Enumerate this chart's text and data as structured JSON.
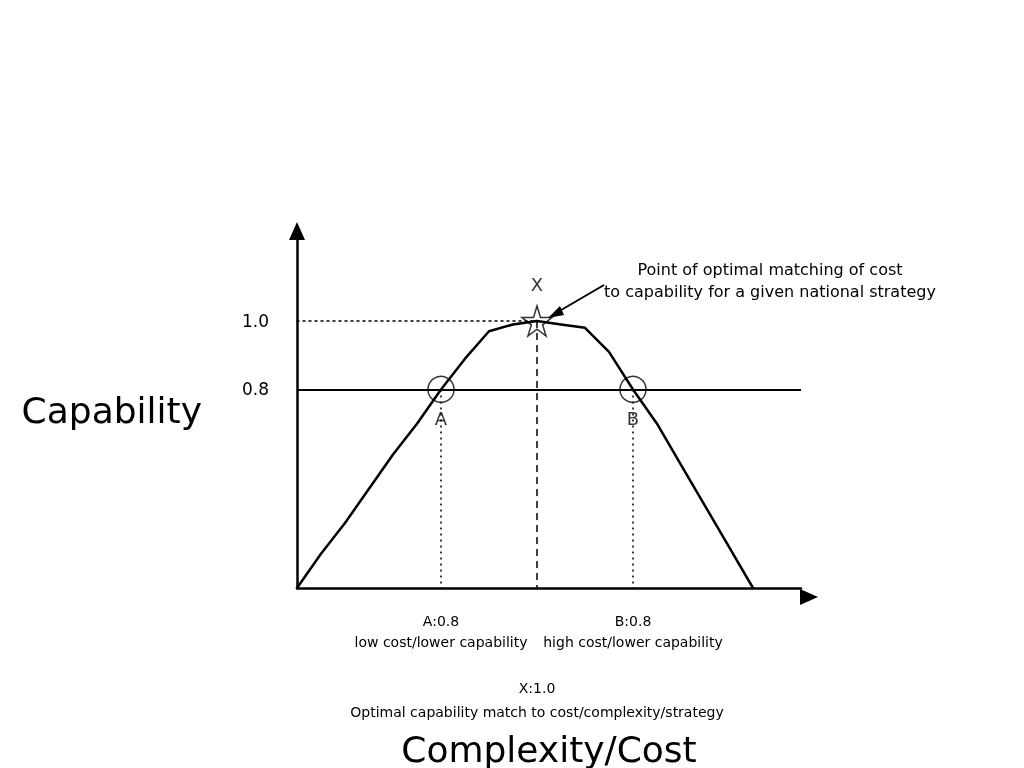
{
  "chart_data": {
    "type": "line",
    "xlabel": "Complexity/Cost",
    "ylabel": "Capability",
    "categories": [
      null,
      null,
      null,
      null,
      null,
      null,
      null,
      null,
      null,
      null,
      null,
      null,
      null,
      null,
      null,
      null,
      null,
      null,
      null,
      null,
      null,
      null
    ],
    "ylim": [
      0.22,
      1.26
    ],
    "yticks": [
      0.8,
      {
        "value": 1,
        "label": "1.0"
      }
    ],
    "series": [
      {
        "color": "#000000",
        "marker": "none",
        "values": [
          0.22,
          0.32,
          0.41,
          0.51,
          0.61,
          0.7,
          0.8,
          0.89,
          0.97,
          0.99,
          1.0,
          0.99,
          0.98,
          0.91,
          0.8,
          0.7,
          0.58,
          0.46,
          0.34,
          0.22,
          null,
          null
        ]
      },
      {
        "color": "#000000",
        "marker": "none",
        "line_style": "dotted",
        "values": [
          1.0,
          1.0,
          1.0,
          1.0,
          1.0,
          1.0,
          1.0,
          1.0,
          1.0,
          1.0,
          1.0,
          null,
          null,
          null,
          null,
          null,
          null,
          null,
          null,
          null,
          null,
          null
        ]
      },
      {
        "type": "scatter",
        "color": "#000000",
        "marker": "circle",
        "line_style": "dotted",
        "values": [
          null,
          null,
          null,
          null,
          null,
          null,
          0.8,
          null,
          null,
          null,
          null,
          null,
          null,
          null,
          0.8,
          null,
          null,
          null,
          null,
          null,
          null,
          null
        ],
        "value_labels": [
          null,
          null,
          null,
          null,
          null,
          null,
          "A",
          null,
          null,
          null,
          null,
          null,
          null,
          null,
          "B",
          null,
          null,
          null,
          null,
          null,
          null,
          null
        ]
      },
      {
        "type": "scatter",
        "color": "#000000",
        "marker": "star",
        "line_style": "dashed",
        "values": [
          null,
          null,
          null,
          null,
          null,
          null,
          null,
          null,
          null,
          null,
          1.0,
          null,
          null,
          null,
          null,
          null,
          null,
          null,
          null,
          null,
          null,
          null
        ],
        "value_labels": [
          null,
          null,
          null,
          null,
          null,
          null,
          null,
          null,
          null,
          null,
          "X",
          null,
          null,
          null,
          null,
          null,
          null,
          null,
          null,
          null,
          null,
          null
        ]
      }
    ],
    "ref_lines": [
      {
        "axis": "y",
        "value": 0.8,
        "color": "#000000",
        "line_style": "solid"
      }
    ],
    "annotations": [
      "Point of optimal matching of cost\nto capability for a given national strategy",
      "A:0.8",
      "low cost/lower capability",
      "B:0.8",
      "high cost/lower capability",
      "X:1.0",
      "Optimal capability match to cost/complexity/strategy"
    ]
  }
}
